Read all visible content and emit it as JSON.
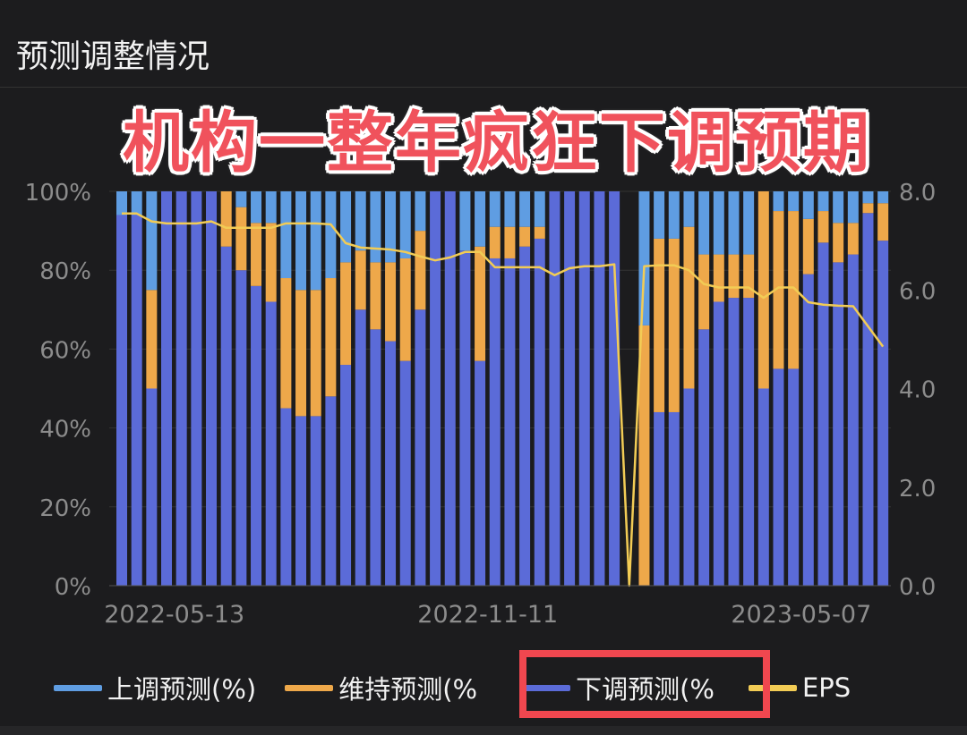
{
  "title": "预测调整情况",
  "overlay_caption": "机构一整年疯狂下调预期",
  "colors": {
    "up": "#5f9de2",
    "maintain": "#eea84a",
    "down": "#5b6bd8",
    "eps": "#f2cc55",
    "highlight": "#f0474f"
  },
  "legend": [
    {
      "label": "上调预测(%)",
      "key": "up"
    },
    {
      "label": "维持预测(%",
      "key": "maintain"
    },
    {
      "label": "下调预测(%",
      "key": "down"
    },
    {
      "label": "EPS",
      "key": "eps"
    }
  ],
  "chart_data": {
    "type": "bar",
    "stacked": true,
    "title": "预测调整情况",
    "x_tick_labels": [
      {
        "index": 4,
        "label": "2022-05-13"
      },
      {
        "index": 25,
        "label": "2022-11-11"
      },
      {
        "index": 46,
        "label": "2023-05-07"
      }
    ],
    "y_left": {
      "ticks": [
        "0%",
        "20%",
        "40%",
        "60%",
        "80%",
        "100%"
      ],
      "range": [
        0,
        100
      ]
    },
    "y_right": {
      "ticks": [
        "0.0",
        "2.0",
        "4.0",
        "6.0",
        "8.0"
      ],
      "range": [
        0,
        8
      ]
    },
    "series": [
      {
        "name": "下调预测(%)",
        "key": "down",
        "values": [
          94,
          94,
          50,
          100,
          100,
          100,
          100,
          86,
          80,
          76,
          72,
          45,
          43,
          43,
          48,
          56,
          70,
          65,
          62,
          57,
          70,
          100,
          100,
          85,
          57,
          83,
          83,
          86,
          88,
          100,
          100,
          100,
          100,
          100,
          0,
          0,
          44,
          44,
          50,
          65,
          72,
          73,
          73,
          50,
          55,
          55,
          79,
          87,
          82,
          84,
          94.5,
          87.5
        ]
      },
      {
        "name": "维持预测(%)",
        "key": "maintain",
        "values": [
          0,
          0,
          25,
          0,
          0,
          0,
          0,
          14,
          16,
          16,
          20,
          33,
          32,
          32,
          30,
          26,
          15,
          17,
          20,
          26,
          20,
          0,
          0,
          0,
          29,
          8,
          8,
          5,
          3,
          0,
          0,
          0,
          0,
          0,
          0,
          66,
          44,
          44,
          41,
          19,
          12,
          11,
          11,
          50,
          40,
          40,
          14,
          8,
          10,
          8,
          2.5,
          9.5
        ]
      },
      {
        "name": "上调预测(%)",
        "key": "up",
        "values": [
          6,
          6,
          25,
          0,
          0,
          0,
          0,
          0,
          4,
          8,
          8,
          22,
          25,
          25,
          22,
          18,
          15,
          18,
          18,
          17,
          10,
          0,
          0,
          15,
          14,
          9,
          9,
          9,
          9,
          0,
          0,
          0,
          0,
          0,
          0,
          34,
          12,
          12,
          9,
          16,
          16,
          16,
          16,
          0,
          5,
          5,
          7,
          5,
          8,
          8,
          3,
          3
        ]
      },
      {
        "name": "EPS",
        "key": "eps",
        "axis": "right",
        "type": "line",
        "values": [
          7.55,
          7.55,
          7.39,
          7.35,
          7.35,
          7.35,
          7.39,
          7.26,
          7.26,
          7.26,
          7.26,
          7.35,
          7.35,
          7.35,
          7.33,
          6.95,
          6.86,
          6.84,
          6.82,
          6.77,
          6.68,
          6.6,
          6.66,
          6.77,
          6.77,
          6.46,
          6.46,
          6.46,
          6.46,
          6.3,
          6.44,
          6.48,
          6.48,
          6.52,
          0,
          6.48,
          6.5,
          6.5,
          6.4,
          6.12,
          6.05,
          6.05,
          6.05,
          5.84,
          6.05,
          6.05,
          5.75,
          5.7,
          5.68,
          5.67,
          5.26,
          4.85
        ]
      }
    ]
  }
}
